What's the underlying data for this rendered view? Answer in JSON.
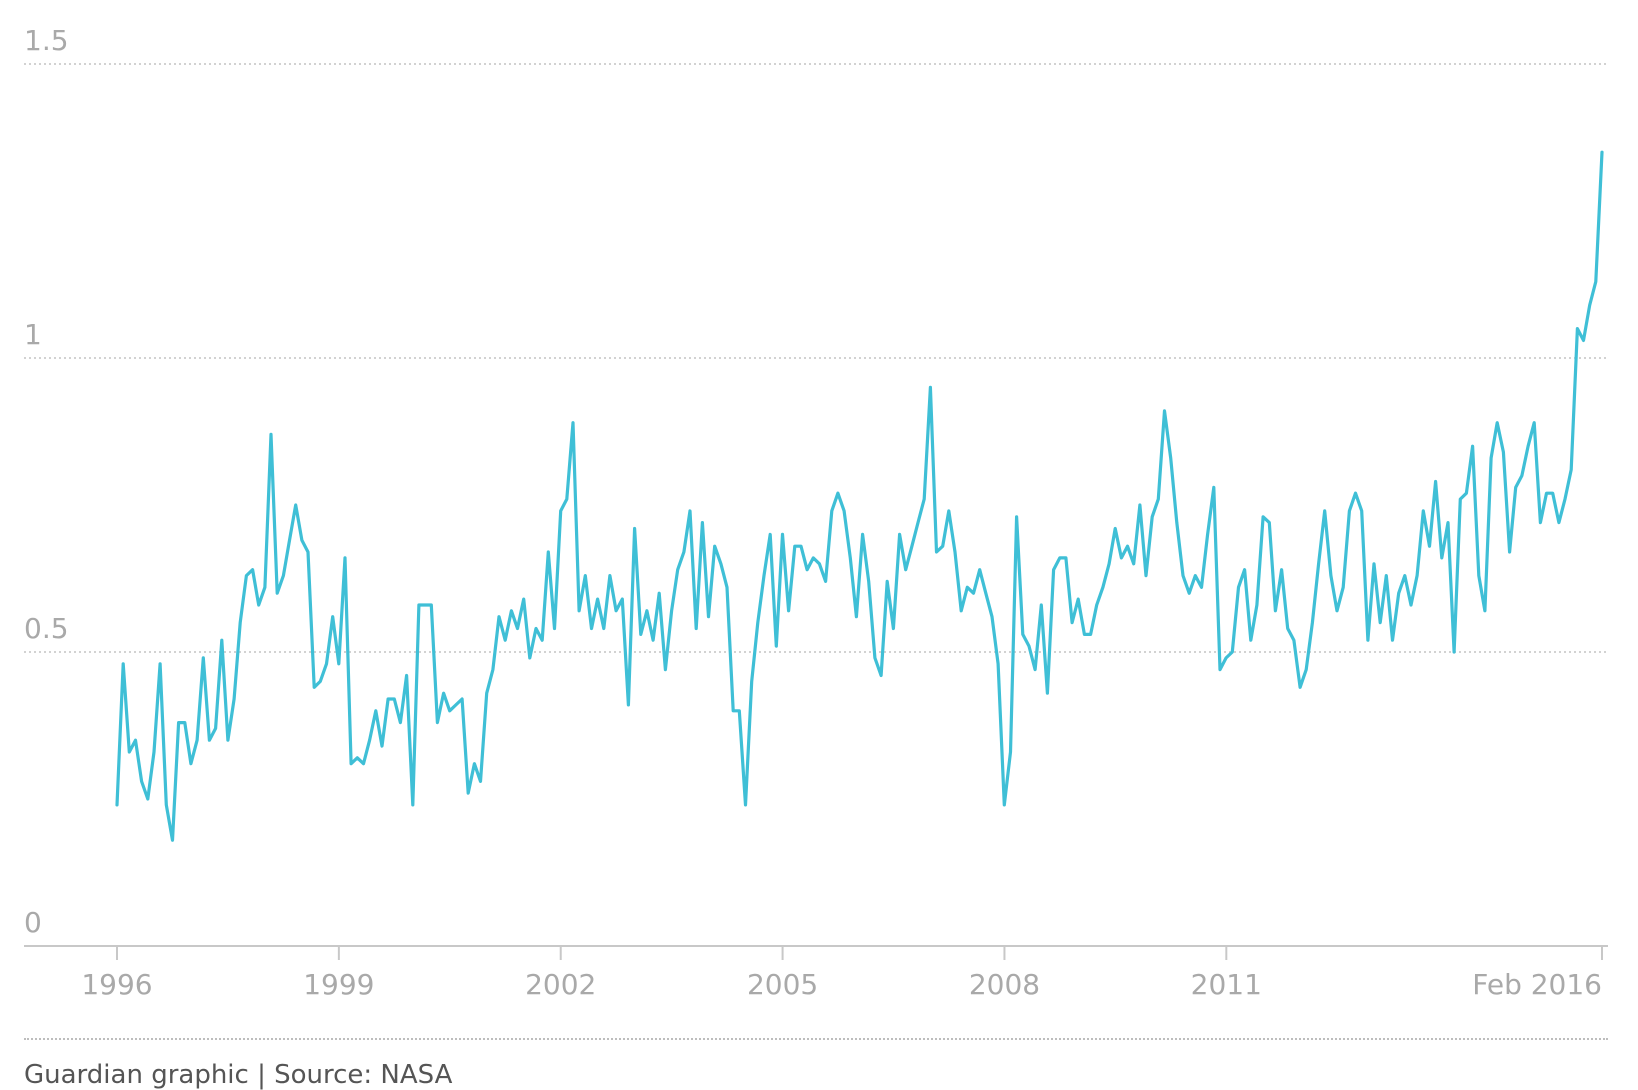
{
  "source": "Guardian graphic | Source: NASA",
  "chart_data": {
    "type": "line",
    "title": "",
    "xlabel": "",
    "ylabel": "",
    "ylim": [
      0,
      1.5
    ],
    "xlim": [
      1996,
      2016.08
    ],
    "yticks": [
      {
        "value": 0,
        "label": "0"
      },
      {
        "value": 0.5,
        "label": "0.5"
      },
      {
        "value": 1,
        "label": "1"
      },
      {
        "value": 1.5,
        "label": "1.5"
      }
    ],
    "xticks": [
      {
        "value": 1996,
        "label": "1996"
      },
      {
        "value": 1999,
        "label": "1999"
      },
      {
        "value": 2002,
        "label": "2002"
      },
      {
        "value": 2005,
        "label": "2005"
      },
      {
        "value": 2008,
        "label": "2008"
      },
      {
        "value": 2011,
        "label": "2011"
      },
      {
        "value": 2016.08,
        "label": "Feb 2016"
      }
    ],
    "grid": true,
    "line_color": "#3fbfd6",
    "series": [
      {
        "x_start": 1996.0,
        "x_step": 0.0833,
        "values": [
          0.24,
          0.48,
          0.33,
          0.35,
          0.28,
          0.25,
          0.33,
          0.48,
          0.24,
          0.18,
          0.38,
          0.38,
          0.31,
          0.35,
          0.49,
          0.35,
          0.37,
          0.52,
          0.35,
          0.42,
          0.55,
          0.63,
          0.64,
          0.58,
          0.61,
          0.87,
          0.6,
          0.63,
          0.69,
          0.75,
          0.69,
          0.67,
          0.44,
          0.45,
          0.48,
          0.56,
          0.48,
          0.66,
          0.31,
          0.32,
          0.31,
          0.35,
          0.4,
          0.34,
          0.42,
          0.42,
          0.38,
          0.46,
          0.24,
          0.58,
          0.58,
          0.58,
          0.38,
          0.43,
          0.4,
          0.41,
          0.42,
          0.26,
          0.31,
          0.28,
          0.43,
          0.47,
          0.56,
          0.52,
          0.57,
          0.54,
          0.59,
          0.49,
          0.54,
          0.52,
          0.67,
          0.54,
          0.74,
          0.76,
          0.89,
          0.57,
          0.63,
          0.54,
          0.59,
          0.54,
          0.63,
          0.57,
          0.59,
          0.41,
          0.71,
          0.53,
          0.57,
          0.52,
          0.6,
          0.47,
          0.57,
          0.64,
          0.67,
          0.74,
          0.54,
          0.72,
          0.56,
          0.68,
          0.65,
          0.61,
          0.4,
          0.4,
          0.24,
          0.45,
          0.55,
          0.63,
          0.7,
          0.51,
          0.7,
          0.57,
          0.68,
          0.68,
          0.64,
          0.66,
          0.65,
          0.62,
          0.74,
          0.77,
          0.74,
          0.66,
          0.56,
          0.7,
          0.62,
          0.49,
          0.46,
          0.62,
          0.54,
          0.7,
          0.64,
          0.68,
          0.72,
          0.76,
          0.95,
          0.67,
          0.68,
          0.74,
          0.67,
          0.57,
          0.61,
          0.6,
          0.64,
          0.6,
          0.56,
          0.48,
          0.24,
          0.33,
          0.73,
          0.53,
          0.51,
          0.47,
          0.58,
          0.43,
          0.64,
          0.66,
          0.66,
          0.55,
          0.59,
          0.53,
          0.53,
          0.58,
          0.61,
          0.65,
          0.71,
          0.66,
          0.68,
          0.65,
          0.75,
          0.63,
          0.73,
          0.76,
          0.91,
          0.83,
          0.72,
          0.63,
          0.6,
          0.63,
          0.61,
          0.7,
          0.78,
          0.47,
          0.49,
          0.5,
          0.61,
          0.64,
          0.52,
          0.58,
          0.73,
          0.72,
          0.57,
          0.64,
          0.54,
          0.52,
          0.44,
          0.47,
          0.55,
          0.65,
          0.74,
          0.63,
          0.57,
          0.61,
          0.74,
          0.77,
          0.74,
          0.52,
          0.65,
          0.55,
          0.63,
          0.52,
          0.6,
          0.63,
          0.58,
          0.63,
          0.74,
          0.68,
          0.79,
          0.66,
          0.72,
          0.5,
          0.76,
          0.77,
          0.85,
          0.63,
          0.57,
          0.83,
          0.89,
          0.84,
          0.67,
          0.78,
          0.8,
          0.85,
          0.89,
          0.72,
          0.77,
          0.77,
          0.72,
          0.76,
          0.81,
          1.05,
          1.03,
          1.09,
          1.13,
          1.35
        ]
      }
    ]
  }
}
